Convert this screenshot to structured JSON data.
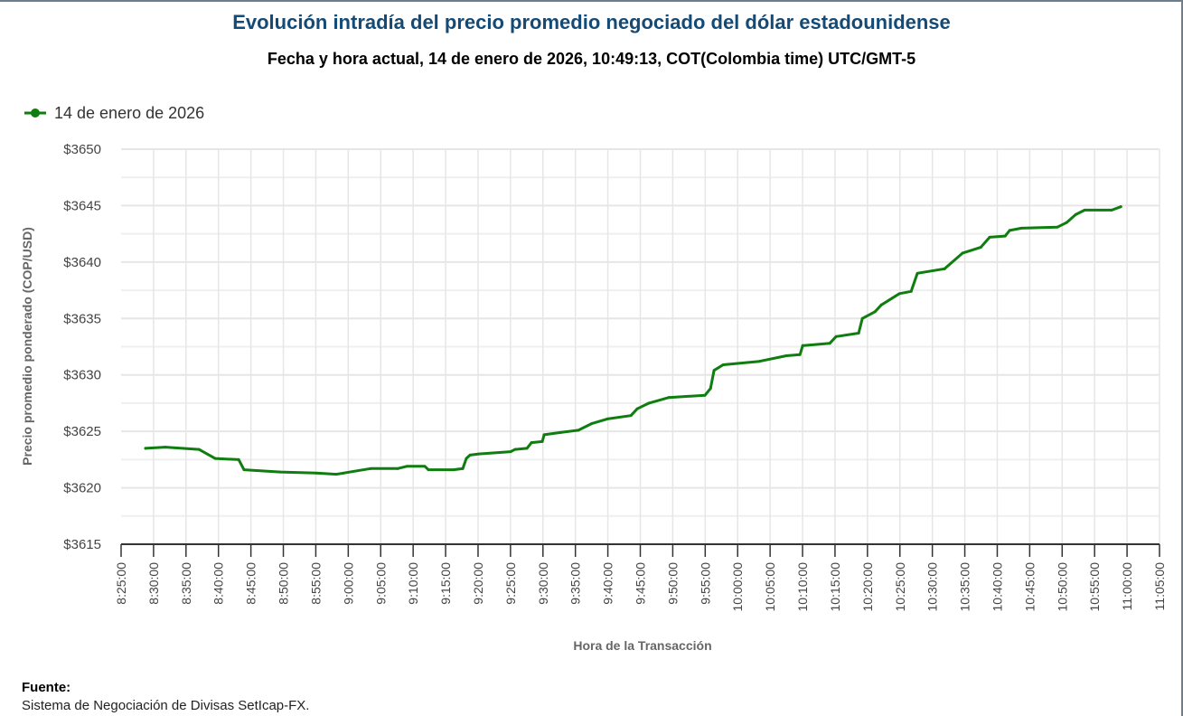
{
  "header": {
    "title": "Evolución intradía del precio promedio negociado del dólar estadounidense",
    "subtitle": "Fecha y hora actual, 14 de enero de 2026, 10:49:13, COT(Colombia time) UTC/GMT-5"
  },
  "footer": {
    "label": "Fuente:",
    "text": "Sistema de Negociación de Divisas SetIcap-FX."
  },
  "chart_data": {
    "type": "line",
    "title": "Evolución intradía del precio promedio negociado del dólar estadounidense",
    "xlabel": "Hora de la Transacción",
    "ylabel": "Precio promedio ponderado (COP/USD)",
    "xlim": [
      "8:25:00",
      "11:05:00"
    ],
    "ylim": [
      3615,
      3650
    ],
    "x_ticks": [
      "8:25:00",
      "8:30:00",
      "8:35:00",
      "8:40:00",
      "8:45:00",
      "8:50:00",
      "8:55:00",
      "9:00:00",
      "9:05:00",
      "9:10:00",
      "9:15:00",
      "9:20:00",
      "9:25:00",
      "9:30:00",
      "9:35:00",
      "9:40:00",
      "9:45:00",
      "9:50:00",
      "9:55:00",
      "10:00:00",
      "10:05:00",
      "10:10:00",
      "10:15:00",
      "10:20:00",
      "10:25:00",
      "10:30:00",
      "10:35:00",
      "10:40:00",
      "10:45:00",
      "10:50:00",
      "10:55:00",
      "11:00:00",
      "11:05:00"
    ],
    "y_ticks": [
      "$3650",
      "$3645",
      "$3640",
      "$3635",
      "$3630",
      "$3625",
      "$3620",
      "$3615"
    ],
    "y_tick_values": [
      3650,
      3645,
      3640,
      3635,
      3630,
      3625,
      3620,
      3615
    ],
    "grid": true,
    "legend_position": "top-left",
    "series": [
      {
        "name": "14 de enero de 2026",
        "color": "#0f7d0f",
        "x": [
          "8:28:46",
          "8:31:49",
          "8:36:59",
          "8:39:29",
          "8:43:07",
          "8:43:56",
          "8:49:31",
          "8:55:05",
          "8:58:09",
          "8:59:16",
          "9:03:26",
          "9:07:37",
          "9:09:01",
          "9:11:48",
          "9:12:21",
          "9:16:15",
          "9:17:39",
          "9:18:12",
          "9:18:46",
          "9:20:09",
          "9:25:02",
          "9:25:43",
          "9:27:32",
          "9:28:14",
          "9:29:54",
          "9:30:11",
          "9:32:41",
          "9:35:28",
          "9:37:34",
          "9:39:56",
          "9:43:33",
          "9:44:32",
          "9:46:20",
          "9:49:24",
          "9:54:58",
          "9:55:49",
          "9:56:22",
          "9:57:46",
          "10:03:20",
          "10:07:31",
          "10:09:36",
          "10:10:01",
          "10:14:11",
          "10:15:10",
          "10:18:39",
          "10:19:13",
          "10:21:10",
          "10:22:08",
          "10:24:55",
          "10:26:44",
          "10:27:42",
          "10:31:53",
          "10:34:40",
          "10:37:27",
          "10:38:50",
          "10:41:13",
          "10:41:55",
          "10:43:43",
          "10:49:17",
          "10:50:41",
          "10:52:05",
          "10:53:28",
          "10:57:39",
          "10:59:02"
        ],
        "values": [
          3623.5,
          3623.6,
          3623.4,
          3622.6,
          3622.5,
          3621.6,
          3621.4,
          3621.3,
          3621.2,
          3621.3,
          3621.7,
          3621.7,
          3621.9,
          3621.9,
          3621.6,
          3621.6,
          3621.7,
          3622.6,
          3622.9,
          3623.0,
          3623.2,
          3623.4,
          3623.5,
          3624.0,
          3624.1,
          3624.7,
          3624.9,
          3625.1,
          3625.7,
          3626.1,
          3626.4,
          3627.0,
          3627.5,
          3628.0,
          3628.2,
          3628.8,
          3630.4,
          3630.9,
          3631.2,
          3631.7,
          3631.8,
          3632.6,
          3632.8,
          3633.4,
          3633.7,
          3635.0,
          3635.6,
          3636.2,
          3637.2,
          3637.4,
          3639.0,
          3639.4,
          3640.8,
          3641.3,
          3642.2,
          3642.3,
          3642.8,
          3643.0,
          3643.1,
          3643.5,
          3644.2,
          3644.6,
          3644.6,
          3644.9
        ]
      }
    ]
  }
}
